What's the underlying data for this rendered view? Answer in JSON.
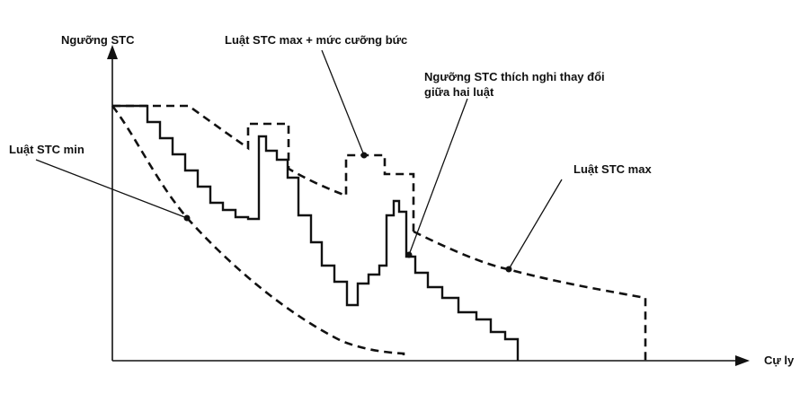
{
  "axes": {
    "y_label": "Ngưỡng STC",
    "x_label": "Cự ly"
  },
  "labels": {
    "stc_max_plus_force": "Luật STC max + mức cưỡng bức",
    "adaptive_line1": "Ngưỡng STC thích nghi thay đổi",
    "adaptive_line2": "giữa hai luật",
    "stc_min": "Luật STC min",
    "stc_max": "Luật STC max"
  },
  "colors": {
    "ink": "#111111",
    "background": "#ffffff"
  }
}
